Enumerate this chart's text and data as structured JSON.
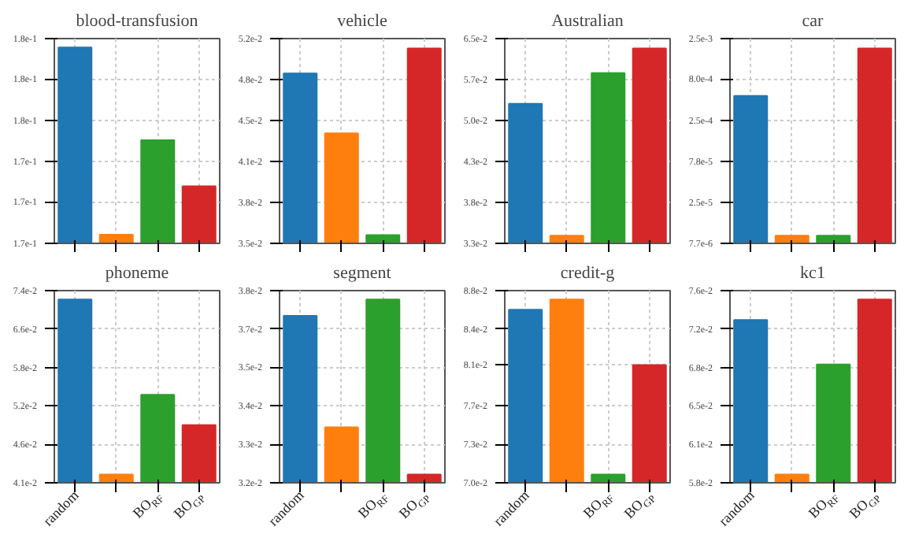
{
  "chart_data": [
    {
      "type": "bar",
      "title": "blood-transfusion",
      "categories": [
        null,
        null,
        null,
        null
      ],
      "values": [
        0.1827,
        0.1667,
        0.1746,
        0.1707
      ],
      "colors": [
        "#1f77b4",
        "#ff7f0e",
        "#2ca02c",
        "#d62728"
      ],
      "log": true,
      "ylim": [
        0.166,
        0.1835
      ],
      "yticks": [
        {
          "value": 0.166,
          "label": "1.7e-1"
        },
        {
          "value": 0.1694,
          "label": "1.7e-1"
        },
        {
          "value": 0.1728,
          "label": "1.7e-1"
        },
        {
          "value": 0.1763,
          "label": "1.8e-1"
        },
        {
          "value": 0.1799,
          "label": "1.8e-1"
        },
        {
          "value": 0.1835,
          "label": "1.8e-1"
        }
      ],
      "grid": true,
      "tick_labels": "y"
    },
    {
      "type": "bar",
      "title": "vehicle",
      "categories": [
        null,
        null,
        null,
        null
      ],
      "values": [
        0.04873,
        0.04354,
        0.03597,
        0.05108
      ],
      "colors": [
        "#1f77b4",
        "#ff7f0e",
        "#2ca02c",
        "#d62728"
      ],
      "log": true,
      "ylim": [
        0.03541,
        0.05203
      ],
      "yticks": [
        {
          "value": 0.03541,
          "label": "3.5e-2"
        },
        {
          "value": 0.03824,
          "label": "3.8e-2"
        },
        {
          "value": 0.0413,
          "label": "4.1e-2"
        },
        {
          "value": 0.0446,
          "label": "4.5e-2"
        },
        {
          "value": 0.04817,
          "label": "4.8e-2"
        },
        {
          "value": 0.05203,
          "label": "5.2e-2"
        }
      ],
      "grid": true,
      "tick_labels": "y"
    },
    {
      "type": "bar",
      "title": "Australian",
      "categories": [
        null,
        null,
        null,
        null
      ],
      "values": [
        0.0524,
        0.03386,
        0.058,
        0.06292
      ],
      "colors": [
        "#1f77b4",
        "#ff7f0e",
        "#2ca02c",
        "#d62728"
      ],
      "log": true,
      "ylim": [
        0.033,
        0.065
      ],
      "yticks": [
        {
          "value": 0.033,
          "label": "3.3e-2"
        },
        {
          "value": 0.03779,
          "label": "3.8e-2"
        },
        {
          "value": 0.04328,
          "label": "4.3e-2"
        },
        {
          "value": 0.04956,
          "label": "5.0e-2"
        },
        {
          "value": 0.05676,
          "label": "5.7e-2"
        },
        {
          "value": 0.065,
          "label": "6.5e-2"
        }
      ],
      "grid": true,
      "tick_labels": "y"
    },
    {
      "type": "bar",
      "title": "car",
      "categories": [
        null,
        null,
        null,
        null
      ],
      "values": [
        0.000495,
        9.59e-06,
        9.59e-06,
        0.001893
      ],
      "colors": [
        "#1f77b4",
        "#ff7f0e",
        "#2ca02c",
        "#d62728"
      ],
      "log": true,
      "ylim": [
        7.7e-06,
        0.0025
      ],
      "yticks": [
        {
          "value": 7.7e-06,
          "label": "7.7e-6"
        },
        {
          "value": 2.46e-05,
          "label": "2.5e-5"
        },
        {
          "value": 7.782e-05,
          "label": "7.8e-5"
        },
        {
          "value": 0.0002474,
          "label": "2.5e-4"
        },
        {
          "value": 0.000796,
          "label": "8.0e-4"
        },
        {
          "value": 0.0025,
          "label": "2.5e-3"
        }
      ],
      "grid": true,
      "tick_labels": "y"
    },
    {
      "type": "bar",
      "title": "phoneme",
      "categories": [
        "random",
        null,
        "BO$_{RF}$",
        "BO$_{GP}$"
      ],
      "values": [
        0.072,
        0.04205,
        0.05374,
        0.04895
      ],
      "colors": [
        "#1f77b4",
        "#ff7f0e",
        "#2ca02c",
        "#d62728"
      ],
      "log": true,
      "ylim": [
        0.041,
        0.074
      ],
      "yticks": [
        {
          "value": 0.041,
          "label": "4.1e-2"
        },
        {
          "value": 0.04614,
          "label": "4.6e-2"
        },
        {
          "value": 0.05193,
          "label": "5.2e-2"
        },
        {
          "value": 0.05844,
          "label": "5.8e-2"
        },
        {
          "value": 0.06577,
          "label": "6.6e-2"
        },
        {
          "value": 0.074,
          "label": "7.4e-2"
        }
      ],
      "grid": true
    },
    {
      "type": "bar",
      "title": "segment",
      "categories": [
        "random",
        null,
        "BO$_{RF}$",
        "BO$_{GP}$"
      ],
      "values": [
        0.03715,
        0.03363,
        0.0377,
        0.03224
      ],
      "colors": [
        "#1f77b4",
        "#ff7f0e",
        "#2ca02c",
        "#d62728"
      ],
      "log": true,
      "ylim": [
        0.032,
        0.038
      ],
      "yticks": [
        {
          "value": 0.032,
          "label": "3.2e-2"
        },
        {
          "value": 0.03312,
          "label": "3.3e-2"
        },
        {
          "value": 0.03428,
          "label": "3.4e-2"
        },
        {
          "value": 0.03548,
          "label": "3.5e-2"
        },
        {
          "value": 0.03672,
          "label": "3.7e-2"
        },
        {
          "value": 0.038,
          "label": "3.8e-2"
        }
      ],
      "grid": true
    },
    {
      "type": "bar",
      "title": "credit-g",
      "categories": [
        "random",
        null,
        "BO$_{RF}$",
        "BO$_{GP}$"
      ],
      "values": [
        0.08603,
        0.08708,
        0.07069,
        0.08054
      ],
      "colors": [
        "#1f77b4",
        "#ff7f0e",
        "#2ca02c",
        "#d62728"
      ],
      "log": true,
      "ylim": [
        0.07,
        0.088
      ],
      "yticks": [
        {
          "value": 0.07,
          "label": "7.0e-2"
        },
        {
          "value": 0.07328,
          "label": "7.3e-2"
        },
        {
          "value": 0.07671,
          "label": "7.7e-2"
        },
        {
          "value": 0.0806,
          "label": "8.1e-2"
        },
        {
          "value": 0.08406,
          "label": "8.4e-2"
        },
        {
          "value": 0.088,
          "label": "8.8e-2"
        }
      ],
      "grid": true
    },
    {
      "type": "bar",
      "title": "kc1",
      "categories": [
        "random",
        null,
        "BO$_{RF}$",
        "BO$_{GP}$"
      ],
      "values": [
        0.07292,
        0.05868,
        0.06851,
        0.07506
      ],
      "colors": [
        "#1f77b4",
        "#ff7f0e",
        "#2ca02c",
        "#d62728"
      ],
      "log": true,
      "ylim": [
        0.058,
        0.076
      ],
      "yticks": [
        {
          "value": 0.058,
          "label": "5.8e-2"
        },
        {
          "value": 0.06122,
          "label": "6.1e-2"
        },
        {
          "value": 0.06462,
          "label": "6.5e-2"
        },
        {
          "value": 0.06821,
          "label": "6.8e-2"
        },
        {
          "value": 0.072,
          "label": "7.2e-2"
        },
        {
          "value": 0.076,
          "label": "7.6e-2"
        }
      ],
      "grid": true
    }
  ]
}
